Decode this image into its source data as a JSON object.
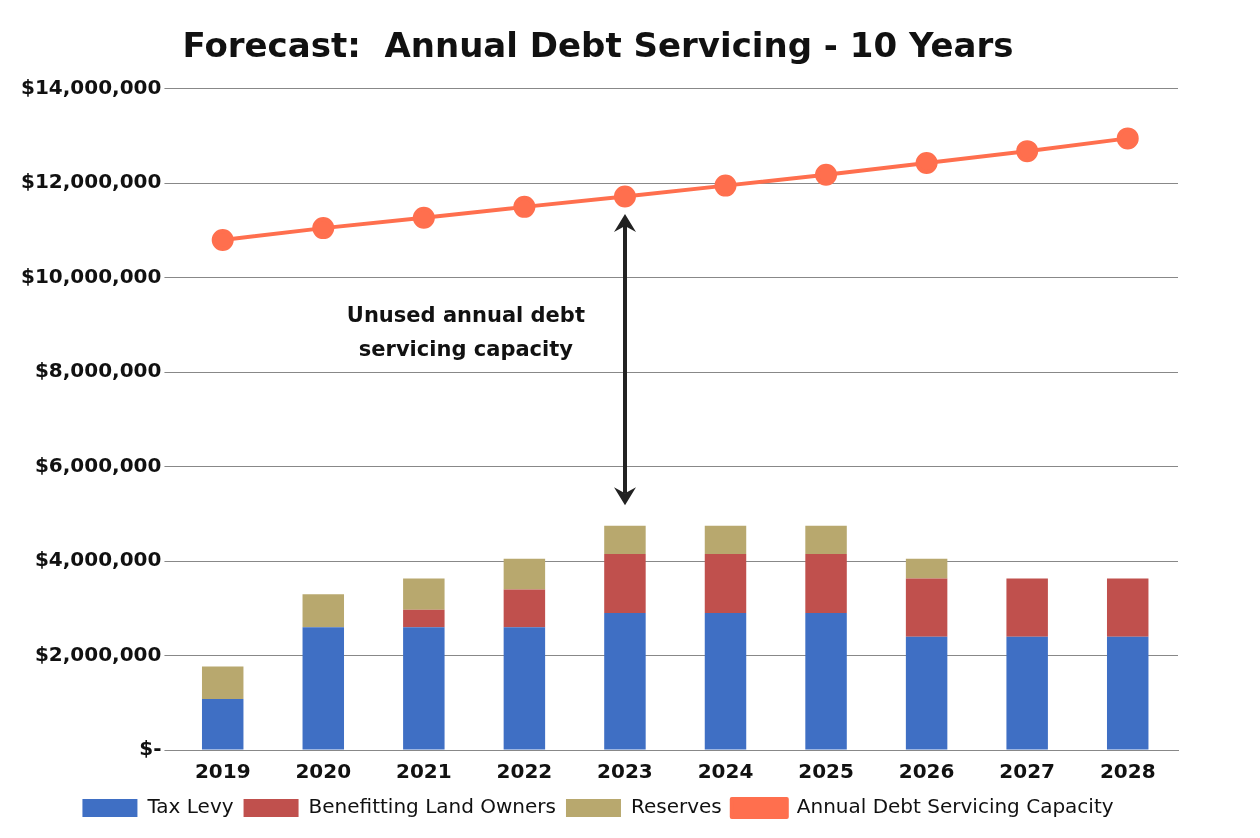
{
  "chart_data": {
    "type": "bar",
    "title": "Forecast:  Annual Debt Servicing - 10 Years",
    "categories": [
      "2019",
      "2020",
      "2021",
      "2022",
      "2023",
      "2024",
      "2025",
      "2026",
      "2027",
      "2028"
    ],
    "stacked": true,
    "series": [
      {
        "name": "Tax Levy",
        "color": "#3f6fc4",
        "values": [
          1080000,
          2600000,
          2600000,
          2600000,
          2900000,
          2900000,
          2900000,
          2400000,
          2400000,
          2400000
        ]
      },
      {
        "name": "Benefitting Land Owners",
        "color": "#c0504d",
        "values": [
          0,
          0,
          370000,
          800000,
          1250000,
          1250000,
          1250000,
          1230000,
          1230000,
          1230000
        ]
      },
      {
        "name": "Reserves",
        "color": "#b8a86e",
        "values": [
          690000,
          700000,
          660000,
          650000,
          600000,
          600000,
          600000,
          420000,
          0,
          0
        ]
      },
      {
        "name": "Annual Debt Servicing Capacity",
        "type": "line",
        "color": "#ff6f4e",
        "marker": "circle",
        "values": [
          10800000,
          11050000,
          11270000,
          11500000,
          11720000,
          11950000,
          12180000,
          12430000,
          12680000,
          12950000
        ]
      }
    ],
    "ylim": [
      0,
      14000000
    ],
    "yticks": [
      {
        "value": 0,
        "label": "$-"
      },
      {
        "value": 2000000,
        "label": "$2,000,000"
      },
      {
        "value": 4000000,
        "label": "$4,000,000"
      },
      {
        "value": 6000000,
        "label": "$6,000,000"
      },
      {
        "value": 8000000,
        "label": "$8,000,000"
      },
      {
        "value": 10000000,
        "label": "$10,000,000"
      },
      {
        "value": 12000000,
        "label": "$12,000,000"
      },
      {
        "value": 14000000,
        "label": "$14,000,000"
      }
    ],
    "grid": "y",
    "legend": "bottom",
    "annotations": [
      "Unused annual debt servicing capacity"
    ]
  }
}
